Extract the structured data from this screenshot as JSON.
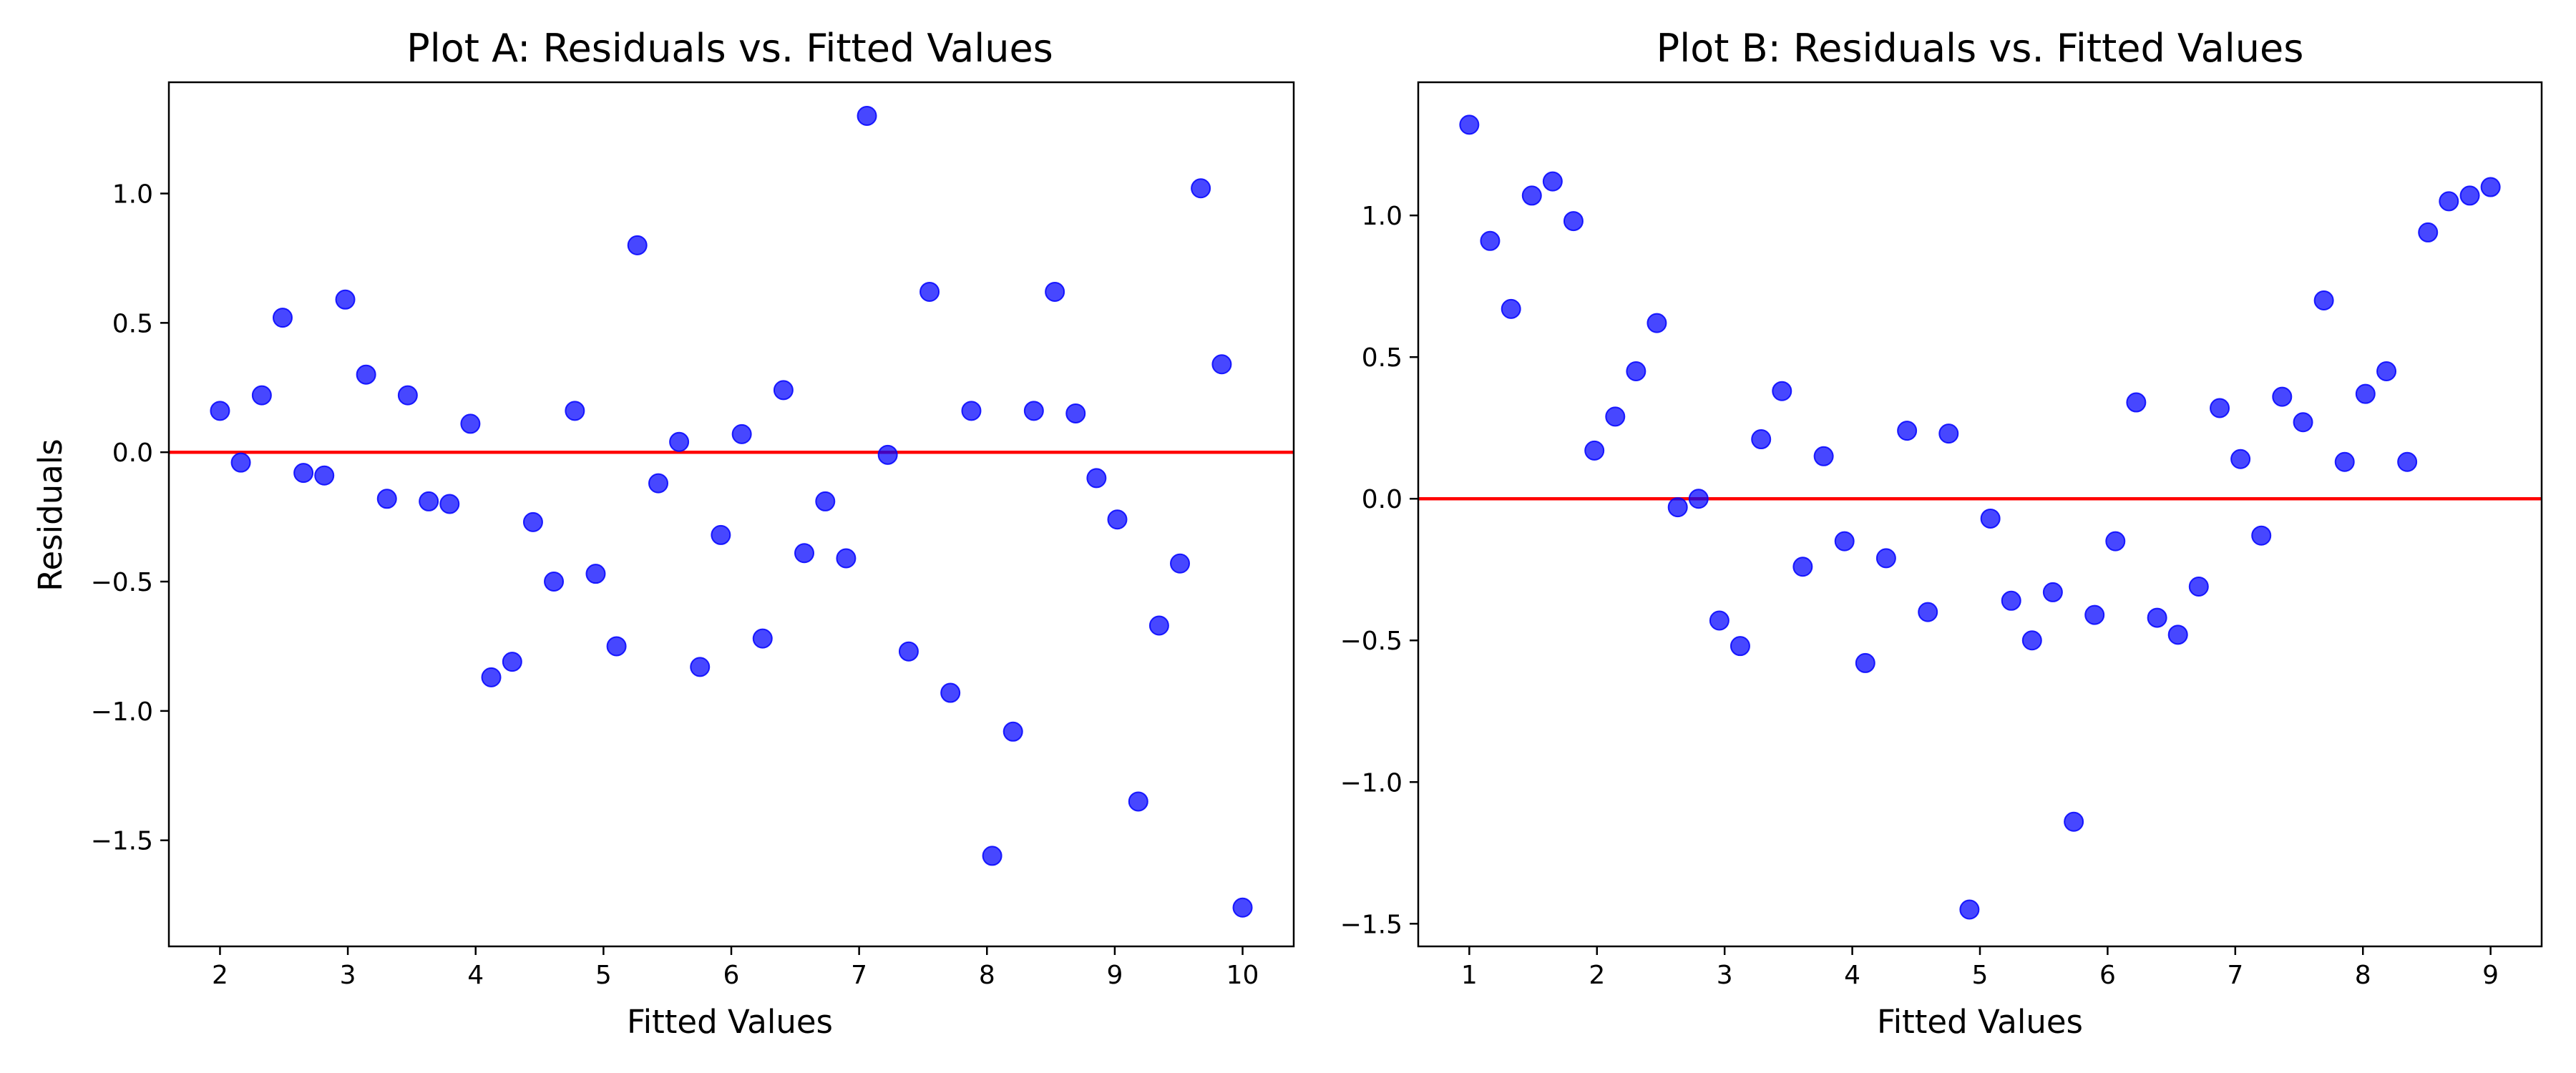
{
  "colors": {
    "point": "#0000ff",
    "zero_line": "#ff0000",
    "axes": "#000000",
    "background": "#ffffff"
  },
  "chart_data": [
    {
      "type": "scatter",
      "title": "Plot A: Residuals vs. Fitted Values",
      "xlabel": "Fitted Values",
      "ylabel": "Residuals",
      "xlim": [
        1.6,
        10.4
      ],
      "ylim": [
        -1.91,
        1.43
      ],
      "xticks": [
        2,
        3,
        4,
        5,
        6,
        7,
        8,
        9,
        10
      ],
      "xtick_labels": [
        "2",
        "3",
        "4",
        "5",
        "6",
        "7",
        "8",
        "9",
        "10"
      ],
      "yticks": [
        -1.5,
        -1.0,
        -0.5,
        0.0,
        0.5,
        1.0
      ],
      "ytick_labels": [
        "−1.5",
        "−1.0",
        "−0.5",
        "0.0",
        "0.5",
        "1.0"
      ],
      "reference_line_y": 0,
      "grid": false,
      "x": [
        2.0,
        2.163,
        2.327,
        2.49,
        2.653,
        2.816,
        2.98,
        3.143,
        3.306,
        3.469,
        3.633,
        3.796,
        3.959,
        4.122,
        4.286,
        4.449,
        4.612,
        4.776,
        4.939,
        5.102,
        5.265,
        5.429,
        5.592,
        5.755,
        5.918,
        6.082,
        6.245,
        6.408,
        6.571,
        6.735,
        6.898,
        7.061,
        7.224,
        7.388,
        7.551,
        7.714,
        7.878,
        8.041,
        8.204,
        8.367,
        8.531,
        8.694,
        8.857,
        9.02,
        9.184,
        9.347,
        9.51,
        9.673,
        9.837,
        10.0
      ],
      "y": [
        0.16,
        -0.04,
        0.22,
        0.52,
        -0.08,
        -0.09,
        0.59,
        0.3,
        -0.18,
        0.22,
        -0.19,
        -0.2,
        0.11,
        -0.87,
        -0.81,
        -0.27,
        -0.5,
        0.16,
        -0.47,
        -0.75,
        0.8,
        -0.12,
        0.04,
        -0.83,
        -0.32,
        0.07,
        -0.72,
        0.24,
        -0.39,
        -0.19,
        -0.41,
        1.3,
        -0.01,
        -0.77,
        0.62,
        -0.93,
        0.16,
        -1.56,
        -1.08,
        0.16,
        0.62,
        0.15,
        -0.1,
        -0.26,
        -1.35,
        -0.67,
        -0.43,
        1.02,
        0.34,
        -1.76
      ]
    },
    {
      "type": "scatter",
      "title": "Plot B: Residuals vs. Fitted Values",
      "xlabel": "Fitted Values",
      "ylabel": "",
      "xlim": [
        0.6,
        9.4
      ],
      "ylim": [
        -1.58,
        1.47
      ],
      "xticks": [
        1,
        2,
        3,
        4,
        5,
        6,
        7,
        8,
        9
      ],
      "xtick_labels": [
        "1",
        "2",
        "3",
        "4",
        "5",
        "6",
        "7",
        "8",
        "9"
      ],
      "yticks": [
        -1.5,
        -1.0,
        -0.5,
        0.0,
        0.5,
        1.0
      ],
      "ytick_labels": [
        "−1.5",
        "−1.0",
        "−0.5",
        "0.0",
        "0.5",
        "1.0"
      ],
      "reference_line_y": 0,
      "grid": false,
      "x": [
        1.0,
        1.163,
        1.327,
        1.49,
        1.653,
        1.816,
        1.98,
        2.143,
        2.306,
        2.469,
        2.633,
        2.796,
        2.959,
        3.122,
        3.286,
        3.449,
        3.612,
        3.776,
        3.939,
        4.102,
        4.265,
        4.429,
        4.592,
        4.755,
        4.918,
        5.082,
        5.245,
        5.408,
        5.571,
        5.735,
        5.898,
        6.061,
        6.224,
        6.388,
        6.551,
        6.714,
        6.878,
        7.041,
        7.204,
        7.367,
        7.531,
        7.694,
        7.857,
        8.02,
        8.184,
        8.347,
        8.51,
        8.673,
        8.837,
        9.0
      ],
      "y": [
        1.32,
        0.91,
        0.67,
        1.07,
        1.12,
        0.98,
        0.17,
        0.29,
        0.45,
        0.62,
        -0.03,
        0.0,
        -0.43,
        -0.52,
        0.21,
        0.38,
        -0.24,
        0.15,
        -0.15,
        -0.58,
        -0.21,
        0.24,
        -0.4,
        0.23,
        -1.45,
        -0.07,
        -0.36,
        -0.5,
        -0.33,
        -1.14,
        -0.41,
        -0.15,
        0.34,
        -0.42,
        -0.48,
        -0.31,
        0.32,
        0.14,
        -0.13,
        0.36,
        0.27,
        0.7,
        0.13,
        0.37,
        0.45,
        0.13,
        0.94,
        1.05,
        1.07,
        1.1
      ]
    }
  ]
}
